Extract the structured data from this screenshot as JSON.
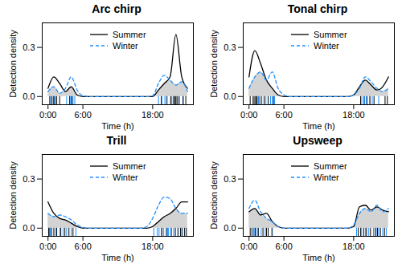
{
  "chart_data": [
    {
      "type": "line",
      "title": "Arc chirp",
      "x_label": "Time (h)",
      "y_label": "Detection density",
      "legend": "top-right",
      "xlim": [
        -1,
        25
      ],
      "ylim": [
        -0.05,
        0.45
      ],
      "xticks": [
        {
          "value": 0,
          "label": "0:00"
        },
        {
          "value": 6,
          "label": "6:00"
        },
        {
          "value": 18,
          "label": "18:00"
        }
      ],
      "yticks": [
        {
          "value": 0,
          "label": "0.0"
        },
        {
          "value": 0.3,
          "label": "0.3"
        }
      ],
      "x": [
        0,
        1,
        2,
        3,
        4,
        5,
        6,
        7,
        8,
        9,
        10,
        11,
        12,
        13,
        14,
        15,
        16,
        17,
        18,
        19,
        20,
        21,
        22,
        23,
        24
      ],
      "series": [
        {
          "name": "Summer",
          "color": "#000000",
          "line_style": "solid",
          "values": [
            0.05,
            0.12,
            0.08,
            0.03,
            0.06,
            0.01,
            0,
            0,
            0,
            0,
            0,
            0,
            0,
            0,
            0,
            0,
            0,
            0,
            0,
            0.04,
            0.08,
            0.12,
            0.38,
            0.12,
            0.05
          ],
          "detections": [
            0.3,
            0.6,
            0.9,
            1.2,
            1.5,
            2.0,
            3.7,
            4.1,
            19.5,
            20.4,
            21.1,
            21.6,
            21.8,
            22.0,
            22.2,
            22.5,
            23.2,
            23.7
          ]
        },
        {
          "name": "Winter",
          "color": "#1f8fff",
          "line_style": "dashed",
          "values": [
            0.03,
            0.06,
            0.02,
            0.05,
            0.12,
            0.04,
            0.005,
            0,
            0,
            0,
            0,
            0,
            0,
            0,
            0,
            0,
            0,
            0,
            0.005,
            0.08,
            0.13,
            0.1,
            0.07,
            0.09,
            0.03
          ],
          "detections": [
            0.5,
            1.1,
            3.2,
            3.8,
            4.0,
            4.3,
            4.6,
            19.0,
            19.6,
            20.1,
            20.5,
            21.3,
            22.6,
            23.3
          ]
        }
      ]
    },
    {
      "type": "line",
      "title": "Tonal chirp",
      "x_label": "Time (h)",
      "y_label": "Detection density",
      "legend": "top-right",
      "xlim": [
        -1,
        25
      ],
      "ylim": [
        -0.05,
        0.45
      ],
      "xticks": [
        {
          "value": 0,
          "label": "0:00"
        },
        {
          "value": 6,
          "label": "6:00"
        },
        {
          "value": 18,
          "label": "18:00"
        }
      ],
      "yticks": [
        {
          "value": 0,
          "label": "0.0"
        },
        {
          "value": 0.3,
          "label": "0.3"
        }
      ],
      "x": [
        0,
        1,
        2,
        3,
        4,
        5,
        6,
        7,
        8,
        9,
        10,
        11,
        12,
        13,
        14,
        15,
        16,
        17,
        18,
        19,
        20,
        21,
        22,
        23,
        24
      ],
      "series": [
        {
          "name": "Summer",
          "color": "#000000",
          "line_style": "solid",
          "values": [
            0.12,
            0.28,
            0.2,
            0.1,
            0.05,
            0.01,
            0,
            0,
            0,
            0,
            0,
            0,
            0,
            0,
            0,
            0,
            0,
            0,
            0.01,
            0.06,
            0.1,
            0.07,
            0.04,
            0.06,
            0.12
          ],
          "detections": [
            0.2,
            0.7,
            1.0,
            1.2,
            1.4,
            1.7,
            2.1,
            2.6,
            3.3,
            4.2,
            19.2,
            19.8,
            20.3,
            20.8,
            21.5,
            23.4,
            23.8
          ]
        },
        {
          "name": "Winter",
          "color": "#1f8fff",
          "line_style": "dashed",
          "values": [
            0.05,
            0.12,
            0.15,
            0.1,
            0.15,
            0.05,
            0.01,
            0,
            0,
            0,
            0,
            0,
            0,
            0,
            0,
            0,
            0,
            0,
            0.01,
            0.05,
            0.12,
            0.09,
            0.05,
            0.03,
            0.05
          ],
          "detections": [
            0.8,
            1.6,
            2.2,
            2.9,
            3.7,
            4.0,
            4.4,
            19.4,
            19.9,
            20.2,
            20.7,
            21.2,
            22.3
          ]
        }
      ]
    },
    {
      "type": "line",
      "title": "Trill",
      "x_label": "Time (h)",
      "y_label": "Detection density",
      "legend": "top-right",
      "xlim": [
        -1,
        25
      ],
      "ylim": [
        -0.05,
        0.45
      ],
      "xticks": [
        {
          "value": 0,
          "label": "0:00"
        },
        {
          "value": 6,
          "label": "6:00"
        },
        {
          "value": 18,
          "label": "18:00"
        }
      ],
      "yticks": [
        {
          "value": 0,
          "label": "0.0"
        },
        {
          "value": 0.3,
          "label": "0.3"
        }
      ],
      "x": [
        0,
        1,
        2,
        3,
        4,
        5,
        6,
        7,
        8,
        9,
        10,
        11,
        12,
        13,
        14,
        15,
        16,
        17,
        18,
        19,
        20,
        21,
        22,
        23,
        24
      ],
      "series": [
        {
          "name": "Summer",
          "color": "#000000",
          "line_style": "solid",
          "values": [
            0.16,
            0.09,
            0.06,
            0.05,
            0.03,
            0.01,
            0,
            0,
            0,
            0,
            0,
            0,
            0,
            0,
            0,
            0,
            0,
            0,
            0.01,
            0.04,
            0.07,
            0.09,
            0.12,
            0.16,
            0.16
          ],
          "detections": [
            0.1,
            0.3,
            0.6,
            1.0,
            1.5,
            2.2,
            2.9,
            3.6,
            4.3,
            19.6,
            20.5,
            21.2,
            21.9,
            22.4,
            22.8,
            23.1,
            23.5,
            23.8
          ]
        },
        {
          "name": "Winter",
          "color": "#1f8fff",
          "line_style": "dashed",
          "values": [
            0.09,
            0.07,
            0.08,
            0.07,
            0.05,
            0.02,
            0.005,
            0,
            0,
            0,
            0,
            0,
            0,
            0,
            0,
            0,
            0,
            0.01,
            0.06,
            0.14,
            0.19,
            0.18,
            0.12,
            0.09,
            0.09
          ],
          "detections": [
            0.4,
            1.3,
            2.0,
            2.6,
            3.2,
            4.0,
            4.8,
            18.2,
            18.8,
            19.1,
            19.5,
            19.9,
            20.3,
            20.7,
            21.1,
            21.6,
            22.3,
            23.0
          ]
        }
      ]
    },
    {
      "type": "line",
      "title": "Upsweep",
      "x_label": "Time (h)",
      "y_label": "Detection density",
      "legend": "top-right",
      "xlim": [
        -1,
        25
      ],
      "ylim": [
        -0.05,
        0.45
      ],
      "xticks": [
        {
          "value": 0,
          "label": "0:00"
        },
        {
          "value": 6,
          "label": "6:00"
        },
        {
          "value": 18,
          "label": "18:00"
        }
      ],
      "yticks": [
        {
          "value": 0,
          "label": "0.0"
        },
        {
          "value": 0.3,
          "label": "0.3"
        }
      ],
      "x": [
        0,
        1,
        2,
        3,
        4,
        5,
        6,
        7,
        8,
        9,
        10,
        11,
        12,
        13,
        14,
        15,
        16,
        17,
        18,
        19,
        20,
        21,
        22,
        23,
        24
      ],
      "series": [
        {
          "name": "Summer",
          "color": "#000000",
          "line_style": "solid",
          "values": [
            0.1,
            0.12,
            0.08,
            0.09,
            0.04,
            0.01,
            0,
            0,
            0,
            0,
            0,
            0,
            0,
            0,
            0,
            0,
            0,
            0,
            0.01,
            0.13,
            0.14,
            0.11,
            0.13,
            0.11,
            0.1
          ],
          "detections": [
            0.2,
            0.7,
            1.1,
            1.6,
            2.4,
            3.0,
            3.3,
            4.0,
            18.8,
            19.2,
            19.7,
            20.2,
            20.9,
            21.7,
            22.1,
            22.6,
            23.3
          ]
        },
        {
          "name": "Winter",
          "color": "#1f8fff",
          "line_style": "dashed",
          "values": [
            0.12,
            0.17,
            0.1,
            0.06,
            0.04,
            0.01,
            0,
            0,
            0,
            0,
            0,
            0,
            0,
            0,
            0,
            0,
            0,
            0,
            0.02,
            0.09,
            0.12,
            0.1,
            0.14,
            0.1,
            0.12
          ],
          "detections": [
            0.4,
            0.9,
            1.2,
            1.5,
            2.1,
            2.8,
            3.9,
            18.5,
            19.3,
            20.0,
            20.6,
            21.4,
            21.9,
            22.3,
            23.0,
            23.6
          ]
        }
      ]
    }
  ]
}
